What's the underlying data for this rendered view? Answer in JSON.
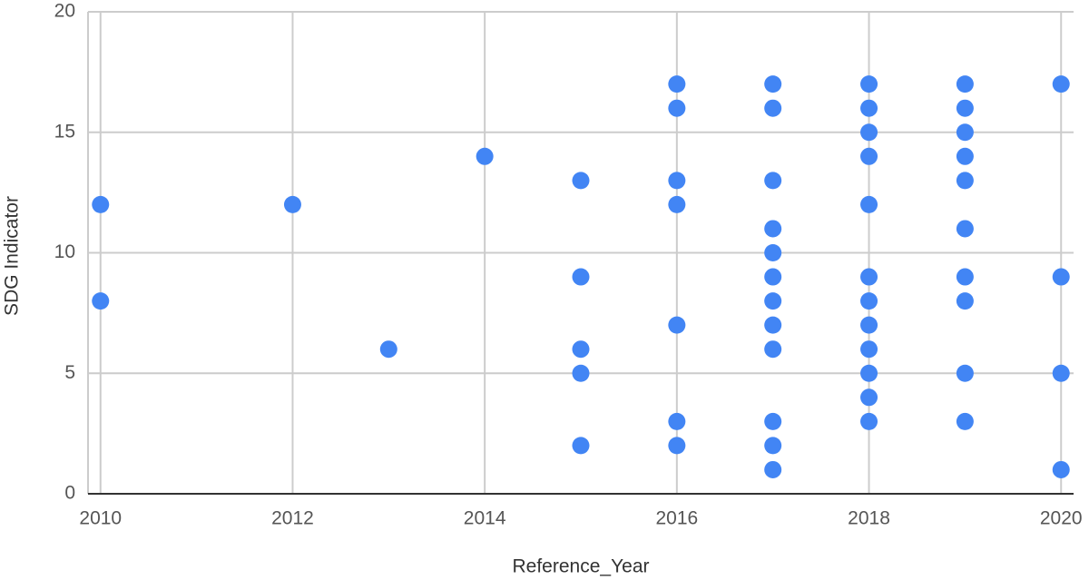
{
  "chart_data": {
    "type": "scatter",
    "x_label": "Reference_Year",
    "y_label": "SDG Indicator",
    "series": [
      {
        "color": "#4285f4",
        "x": [
          2010,
          2010,
          2012,
          2013,
          2014,
          2015,
          2015,
          2015,
          2015,
          2015,
          2016,
          2016,
          2016,
          2016,
          2016,
          2016,
          2016,
          2017,
          2017,
          2017,
          2017,
          2017,
          2017,
          2017,
          2017,
          2017,
          2017,
          2017,
          2017,
          2018,
          2018,
          2018,
          2018,
          2018,
          2018,
          2018,
          2018,
          2018,
          2018,
          2018,
          2018,
          2019,
          2019,
          2019,
          2019,
          2019,
          2019,
          2019,
          2019,
          2019,
          2019,
          2020,
          2020,
          2020,
          2020
        ],
        "values": [
          12,
          8,
          12,
          6,
          14,
          13,
          9,
          6,
          5,
          2,
          17,
          16,
          13,
          12,
          7,
          3,
          2,
          17,
          16,
          13,
          11,
          10,
          9,
          8,
          7,
          6,
          3,
          2,
          1,
          17,
          16,
          15,
          14,
          12,
          9,
          8,
          7,
          6,
          5,
          4,
          3,
          17,
          16,
          15,
          14,
          13,
          11,
          9,
          8,
          5,
          3,
          17,
          9,
          5,
          1
        ]
      }
    ],
    "xlim": [
      2009.87,
      2020.13
    ],
    "xticks": [
      2010,
      2012,
      2014,
      2016,
      2018,
      2020
    ],
    "ylim": [
      0,
      20
    ],
    "yticks": [
      0,
      5,
      10,
      15,
      20
    ],
    "grid": true
  }
}
